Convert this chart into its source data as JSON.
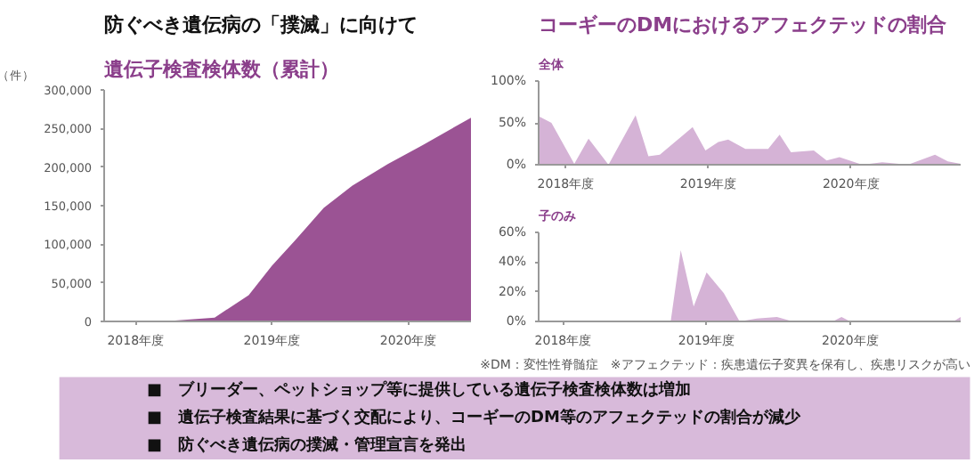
{
  "chart_data": [
    {
      "type": "area",
      "title": "防ぐべき遺伝病の「撲滅」に向けて",
      "subtitle": "遺伝子検査検体数（累計）",
      "ylabel": "（件）",
      "x": [
        2017.77,
        2018.2,
        2018.58,
        2018.83,
        2019.0,
        2019.17,
        2019.38,
        2019.59,
        2019.85,
        2020.1,
        2020.46
      ],
      "series": [
        {
          "color": "#9b5394",
          "values": [
            0,
            0,
            5000,
            34000,
            72000,
            105000,
            147000,
            176000,
            204000,
            228000,
            264000
          ]
        }
      ],
      "xlim": [
        2017.77,
        2020.46
      ],
      "xticks": [
        {
          "value": 2018,
          "label": "2018年度"
        },
        {
          "value": 2019,
          "label": "2019年度"
        },
        {
          "value": 2020,
          "label": "2020年度"
        }
      ],
      "ylim": [
        0,
        300000
      ],
      "yticks": [
        {
          "value": 0,
          "label": "0"
        },
        {
          "value": 50000,
          "label": "50,000"
        },
        {
          "value": 100000,
          "label": "100,000"
        },
        {
          "value": 150000,
          "label": "150,000"
        },
        {
          "value": 200000,
          "label": "200,000"
        },
        {
          "value": 250000,
          "label": "250,000"
        },
        {
          "value": 300000,
          "label": "300,000"
        }
      ]
    },
    {
      "type": "area",
      "title": "コーギーのDMにおけるアフェクテッドの割合",
      "subtitle": "全体",
      "x": [
        2017.81,
        2017.9,
        2018.06,
        2018.16,
        2018.3,
        2018.49,
        2018.58,
        2018.66,
        2018.89,
        2018.98,
        2019.07,
        2019.14,
        2019.26,
        2019.42,
        2019.5,
        2019.58,
        2019.74,
        2019.83,
        2019.92,
        2020.08,
        2020.22,
        2020.4,
        2020.59,
        2020.68,
        2020.77
      ],
      "series": [
        {
          "color": "#d5b3d6",
          "values": [
            58,
            50,
            1,
            31,
            0,
            59,
            10,
            12,
            45,
            17,
            27,
            30,
            19,
            19,
            36,
            15,
            17,
            5,
            9,
            0,
            3,
            0,
            12,
            4,
            1
          ]
        }
      ],
      "xlim": [
        2017.81,
        2020.77
      ],
      "xticks": [
        {
          "value": 2018,
          "label": "2018年度"
        },
        {
          "value": 2019,
          "label": "2019年度"
        },
        {
          "value": 2020,
          "label": "2020年度"
        }
      ],
      "ylim": [
        0,
        100
      ],
      "yticks": [
        {
          "value": 0,
          "label": "0%"
        },
        {
          "value": 50,
          "label": "50%"
        },
        {
          "value": 100,
          "label": "100%"
        }
      ]
    },
    {
      "type": "area",
      "subtitle": "子のみ",
      "x": [
        2017.83,
        2018.75,
        2018.82,
        2018.91,
        2019.0,
        2019.12,
        2019.23,
        2019.35,
        2019.49,
        2019.6,
        2019.88,
        2019.94,
        2020.0,
        2020.72,
        2020.77
      ],
      "series": [
        {
          "color": "#d5b3d6",
          "values": [
            0,
            0,
            48,
            10,
            33,
            19,
            0,
            2,
            3,
            0,
            0,
            3,
            0,
            0,
            3
          ]
        }
      ],
      "xlim": [
        2017.83,
        2020.77
      ],
      "xticks": [
        {
          "value": 2018,
          "label": "2018年度"
        },
        {
          "value": 2019,
          "label": "2019年度"
        },
        {
          "value": 2020,
          "label": "2020年度"
        }
      ],
      "ylim": [
        0,
        60
      ],
      "yticks": [
        {
          "value": 0,
          "label": "0%"
        },
        {
          "value": 20,
          "label": "20%"
        },
        {
          "value": 40,
          "label": "40%"
        },
        {
          "value": 60,
          "label": "60%"
        }
      ],
      "annotations": [
        "※DM：変性性脊髄症　※アフェクテッド：疾患遺伝子変異を保有し、疾患リスクが高い"
      ]
    },
    {
      "type": "other",
      "annotations": [
        "■　ブリーダー、ペットショップ等に提供している遺伝子検査検体数は増加",
        "■　遺伝子検査結果に基づく交配により、コーギーのDM等のアフェクテッドの割合が減少",
        "■　防ぐべき遺伝病の撲滅・管理宣言を発出"
      ]
    }
  ]
}
